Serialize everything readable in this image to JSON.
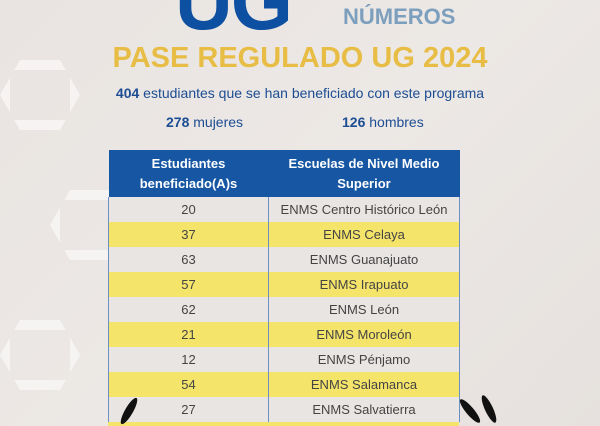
{
  "logo": {
    "big": "UG",
    "sub": "NÚMEROS"
  },
  "title": "PASE REGULADO UG 2024",
  "summary": {
    "total": "404",
    "total_text": "estudiantes que se han beneficiado con este programa",
    "women": "278",
    "women_label": "mujeres",
    "men": "126",
    "men_label": "hombres"
  },
  "table": {
    "headers": [
      "Estudiantes beneficiado(A)s",
      "Escuelas de Nivel Medio Superior"
    ],
    "rows": [
      {
        "count": "20",
        "school": "ENMS Centro Histórico León"
      },
      {
        "count": "37",
        "school": "ENMS Celaya"
      },
      {
        "count": "63",
        "school": "ENMS Guanajuato"
      },
      {
        "count": "57",
        "school": "ENMS Irapuato"
      },
      {
        "count": "62",
        "school": "ENMS León"
      },
      {
        "count": "21",
        "school": "ENMS Moroleón"
      },
      {
        "count": "12",
        "school": "ENMS Pénjamo"
      },
      {
        "count": "54",
        "school": "ENMS Salamanca"
      },
      {
        "count": "27",
        "school": "ENMS Salvatierra"
      }
    ]
  },
  "colors": {
    "blue": "#1656a3",
    "yellow": "#f5e46a",
    "gold": "#e8bd45"
  }
}
